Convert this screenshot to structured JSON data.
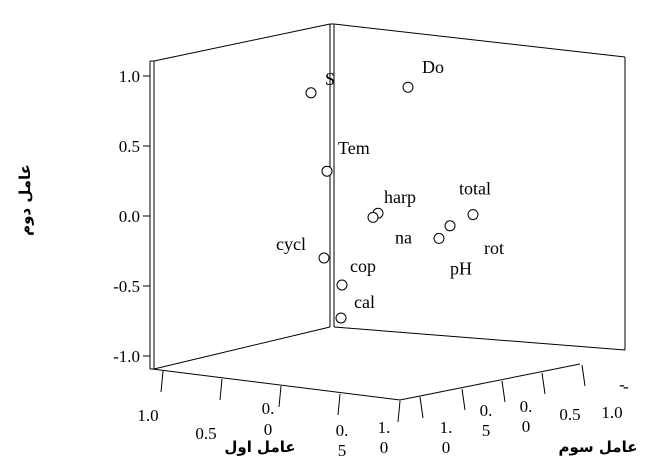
{
  "chart_data": {
    "type": "scatter",
    "dimensions": 3,
    "axis_labels": {
      "vertical": "عامل دوم",
      "left_floor": "عامل اول",
      "right_floor": "عامل سوم"
    },
    "vertical_axis": {
      "range": [
        -1.0,
        1.0
      ],
      "ticks": [
        "1.0",
        "0.5",
        "0.0",
        "-0.5",
        "-1.0"
      ]
    },
    "left_floor_ticks": [
      "1.0",
      "0.5",
      "0.",
      "0.",
      "1.",
      "-"
    ],
    "left_floor_tick_subs": [
      "",
      "",
      "0",
      "5",
      "0",
      ""
    ],
    "right_floor_ticks": [
      "1.",
      "0.",
      "0.",
      "0.5",
      "1.0"
    ],
    "right_floor_tick_subs": [
      "0",
      "5",
      "0",
      "",
      ""
    ],
    "right_floor_tick_top": [
      "",
      "",
      "",
      "",
      "-"
    ],
    "points": [
      {
        "label": "S",
        "second": 0.88
      },
      {
        "label": "Do",
        "second": 0.92
      },
      {
        "label": "Tem",
        "second": 0.32
      },
      {
        "label": "total",
        "second": 0.01
      },
      {
        "label": "harp",
        "second": 0.02
      },
      {
        "label": "na",
        "second": -0.01
      },
      {
        "label": "rot",
        "second": -0.07
      },
      {
        "label": "pH",
        "second": -0.16
      },
      {
        "label": "cycl",
        "second": -0.3
      },
      {
        "label": "cop",
        "second": -0.49
      },
      {
        "label": "cal",
        "second": -0.73
      }
    ]
  }
}
